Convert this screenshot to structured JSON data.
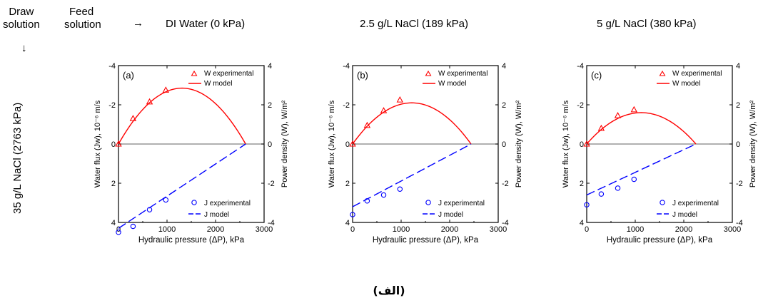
{
  "header": {
    "draw_solution": [
      "Draw",
      "solution"
    ],
    "feed_solution": [
      "Feed",
      "solution"
    ],
    "arrow_right": "→",
    "arrow_down": "↓",
    "row_label": "35 g/L NaCl (2763 kPa)",
    "column_titles": [
      "DI Water (0 kPa)",
      "2.5 g/L NaCl (189 kPa)",
      "5 g/L NaCl (380 kPa)"
    ]
  },
  "caption": "(الف)",
  "colors": {
    "W": "#ff0000",
    "J": "#0000ff",
    "zero_line": "#808080"
  },
  "chart_data": [
    {
      "type": "scatter",
      "panel_label": "(a)",
      "xlabel": "Hydraulic pressure (ΔP), kPa",
      "ylabel_left": "Water flux (Jw), 10⁻⁶ m/s",
      "ylabel_right": "Power density (W), W/m²",
      "xlim": [
        0,
        3000
      ],
      "xticks": [
        "0",
        "1000",
        "2000",
        "3000"
      ],
      "ylim_left": [
        4,
        -4
      ],
      "yticks_left": [
        "4",
        "2",
        "0",
        "-2",
        "-4"
      ],
      "ylim_right": [
        -4,
        4
      ],
      "yticks_right": [
        "-4",
        "-2",
        "0",
        "2",
        "4"
      ],
      "legend": [
        "W experimental",
        "W model",
        "J experimental",
        "J model"
      ],
      "W_experimental": {
        "x": [
          0,
          300,
          640,
          975
        ],
        "y": [
          0,
          1.3,
          2.15,
          2.75
        ]
      },
      "W_model": {
        "x0": 0,
        "x1": 2620,
        "peak": 2.85
      },
      "J_experimental": {
        "x": [
          0,
          300,
          640,
          975
        ],
        "y": [
          4.5,
          4.2,
          3.35,
          2.85
        ]
      },
      "J_model": {
        "x": [
          0,
          2620
        ],
        "y": [
          4.3,
          0
        ]
      }
    },
    {
      "type": "scatter",
      "panel_label": "(b)",
      "xlabel": "Hydraulic pressure (ΔP), kPa",
      "ylabel_left": "Water flux (Jw), 10⁻⁶ m/s",
      "ylabel_right": "Power density (W), W/m²",
      "xlim": [
        0,
        3000
      ],
      "xticks": [
        "0",
        "1000",
        "2000",
        "3000"
      ],
      "ylim_left": [
        4,
        -4
      ],
      "yticks_left": [
        "4",
        "2",
        "0",
        "-2",
        "-4"
      ],
      "ylim_right": [
        -4,
        4
      ],
      "yticks_right": [
        "-4",
        "-2",
        "0",
        "2",
        "4"
      ],
      "legend": [
        "W experimental",
        "W model",
        "J experimental",
        "J model"
      ],
      "W_experimental": {
        "x": [
          0,
          300,
          640,
          975
        ],
        "y": [
          0,
          0.95,
          1.7,
          2.25
        ]
      },
      "W_model": {
        "x0": 0,
        "x1": 2440,
        "peak": 2.1
      },
      "J_experimental": {
        "x": [
          0,
          300,
          640,
          975
        ],
        "y": [
          3.6,
          2.9,
          2.6,
          2.3
        ]
      },
      "J_model": {
        "x": [
          0,
          2440
        ],
        "y": [
          3.2,
          0
        ]
      }
    },
    {
      "type": "scatter",
      "panel_label": "(c)",
      "xlabel": "Hydraulic pressure (ΔP), kPa",
      "ylabel_left": "Water flux (Jw), 10⁻⁶ m/s",
      "ylabel_right": "Power density (W), W/m²",
      "xlim": [
        0,
        3000
      ],
      "xticks": [
        "0",
        "1000",
        "2000",
        "3000"
      ],
      "ylim_left": [
        4,
        -4
      ],
      "yticks_left": [
        "4",
        "2",
        "0",
        "-2",
        "-4"
      ],
      "ylim_right": [
        -4,
        4
      ],
      "yticks_right": [
        "-4",
        "-2",
        "0",
        "2",
        "4"
      ],
      "legend": [
        "W experimental",
        "W model",
        "J experimental",
        "J model"
      ],
      "W_experimental": {
        "x": [
          0,
          300,
          640,
          975
        ],
        "y": [
          0,
          0.8,
          1.45,
          1.75
        ]
      },
      "W_model": {
        "x0": 0,
        "x1": 2250,
        "peak": 1.6
      },
      "J_experimental": {
        "x": [
          0,
          300,
          640,
          975
        ],
        "y": [
          3.1,
          2.55,
          2.25,
          1.8
        ]
      },
      "J_model": {
        "x": [
          0,
          2250
        ],
        "y": [
          2.6,
          0
        ]
      }
    }
  ]
}
